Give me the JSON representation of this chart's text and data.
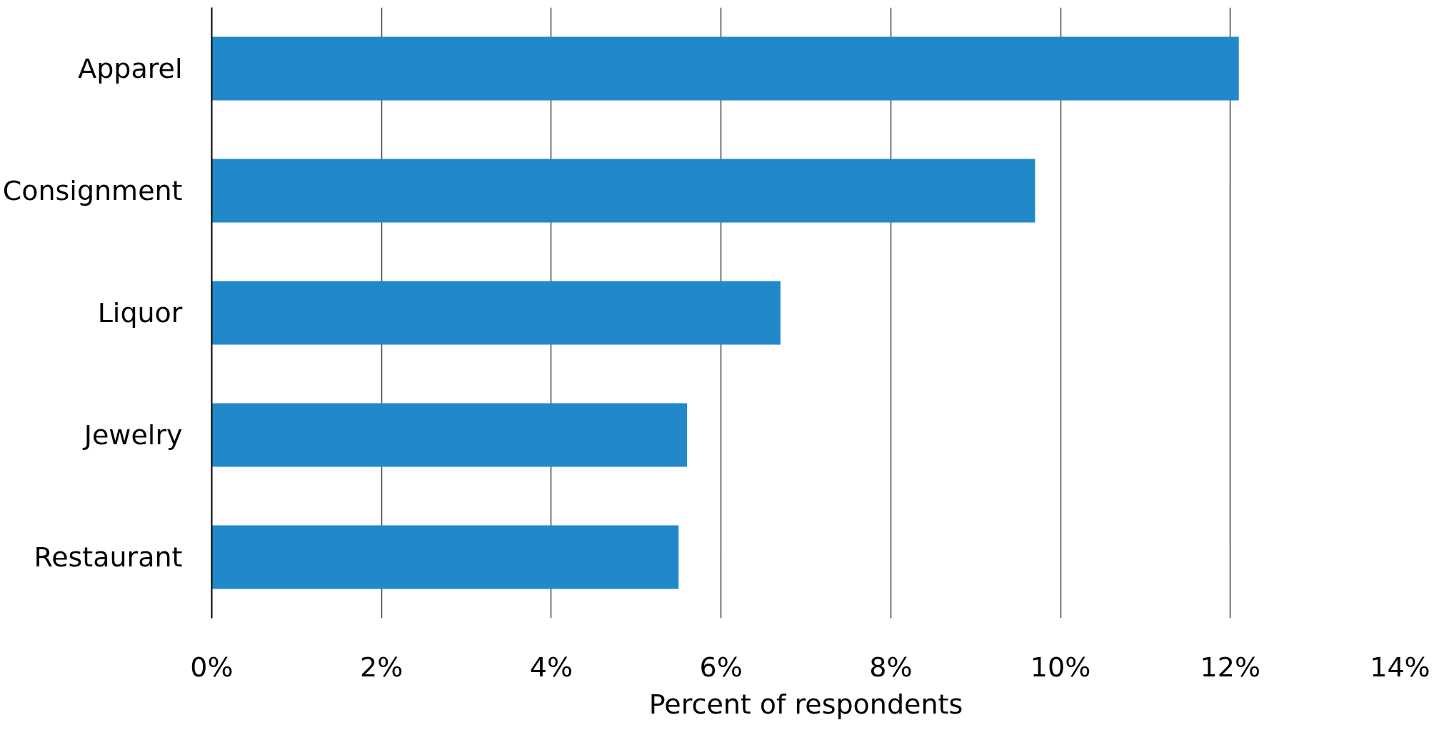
{
  "chart_data": {
    "type": "bar",
    "orientation": "horizontal",
    "xlabel": "Percent of respondents",
    "categories": [
      "Apparel",
      "Consignment",
      "Liquor",
      "Jewelry",
      "Restaurant"
    ],
    "values": [
      12.1,
      9.7,
      6.7,
      5.6,
      5.5
    ],
    "color": "#2189c9",
    "xlim": [
      0,
      14
    ],
    "xticks": [
      {
        "value": 0,
        "label": "0%"
      },
      {
        "value": 2,
        "label": "2%"
      },
      {
        "value": 4,
        "label": "4%"
      },
      {
        "value": 6,
        "label": "6%"
      },
      {
        "value": 8,
        "label": "8%"
      },
      {
        "value": 10,
        "label": "10%"
      },
      {
        "value": 12,
        "label": "12%"
      },
      {
        "value": 14,
        "label": "14%"
      }
    ],
    "grid": "x"
  }
}
